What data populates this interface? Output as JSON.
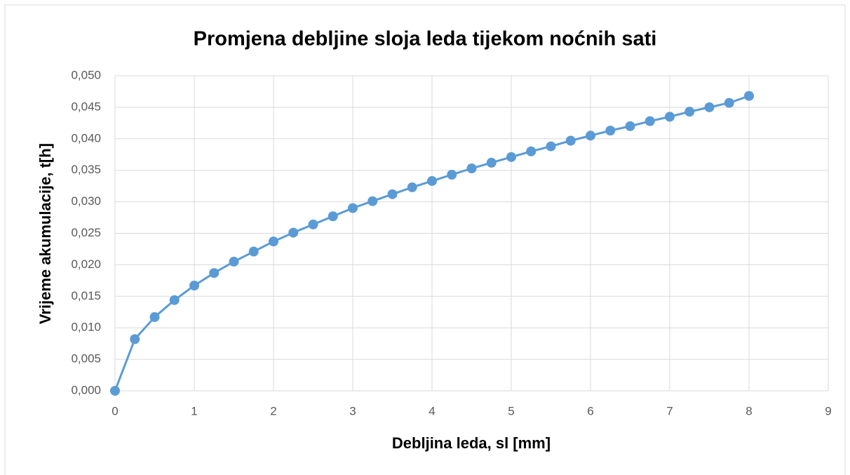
{
  "chart_data": {
    "type": "line",
    "title": "Promjena debljine sloja leda tijekom noćnih sati",
    "xlabel": "Debljina leda, sl [mm]",
    "ylabel": "Vrijeme akumulacije, t[h]",
    "x": [
      0,
      0.25,
      0.5,
      0.75,
      1,
      1.25,
      1.5,
      1.75,
      2,
      2.25,
      2.5,
      2.75,
      3,
      3.25,
      3.5,
      3.75,
      4,
      4.25,
      4.5,
      4.75,
      5,
      5.25,
      5.5,
      5.75,
      6,
      6.25,
      6.5,
      6.75,
      7,
      7.25,
      7.5,
      7.75,
      8
    ],
    "values": [
      0,
      0.0082,
      0.0117,
      0.0144,
      0.0167,
      0.0187,
      0.0205,
      0.0221,
      0.0237,
      0.0251,
      0.0264,
      0.0277,
      0.029,
      0.0301,
      0.0312,
      0.0323,
      0.0333,
      0.0343,
      0.0353,
      0.0362,
      0.0371,
      0.038,
      0.0388,
      0.0397,
      0.0405,
      0.0413,
      0.042,
      0.0428,
      0.0435,
      0.0443,
      0.045,
      0.0457,
      0.0468
    ],
    "color": "#5b9bd5",
    "xlim": [
      0,
      9
    ],
    "xticks": [
      0,
      1,
      2,
      3,
      4,
      5,
      6,
      7,
      8,
      9
    ],
    "ylim": [
      0,
      0.05
    ],
    "yticks": [
      {
        "value": 0,
        "label": "0,000"
      },
      {
        "value": 0.005,
        "label": "0,005"
      },
      {
        "value": 0.01,
        "label": "0,010"
      },
      {
        "value": 0.015,
        "label": "0,015"
      },
      {
        "value": 0.02,
        "label": "0,020"
      },
      {
        "value": 0.025,
        "label": "0,025"
      },
      {
        "value": 0.03,
        "label": "0,030"
      },
      {
        "value": 0.035,
        "label": "0,035"
      },
      {
        "value": 0.04,
        "label": "0,040"
      },
      {
        "value": 0.045,
        "label": "0,045"
      },
      {
        "value": 0.05,
        "label": "0,050"
      }
    ],
    "grid": true
  }
}
